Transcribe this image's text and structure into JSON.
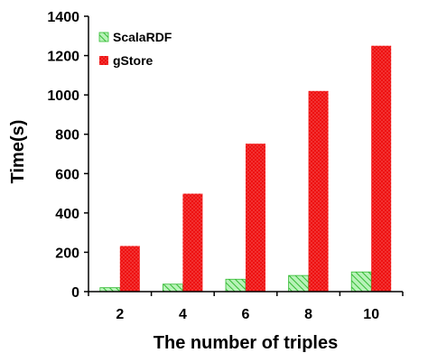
{
  "chart_data": {
    "type": "bar",
    "categories": [
      "2",
      "4",
      "6",
      "8",
      "10"
    ],
    "series": [
      {
        "name": "ScalaRDF",
        "values": [
          20,
          38,
          63,
          82,
          100
        ],
        "color": "#66dd66",
        "pattern": "diagonal-hatch"
      },
      {
        "name": "gStore",
        "values": [
          232,
          498,
          752,
          1020,
          1250
        ],
        "color": "#ee1111",
        "pattern": "dotted"
      }
    ],
    "title": "",
    "xlabel": "The number of triples",
    "ylabel": "Time(s)",
    "ylim": [
      0,
      1400
    ],
    "yticks": [
      "0",
      "200",
      "400",
      "600",
      "800",
      "1000",
      "1200",
      "1400"
    ],
    "grid": false,
    "legend_position": "top-left"
  }
}
